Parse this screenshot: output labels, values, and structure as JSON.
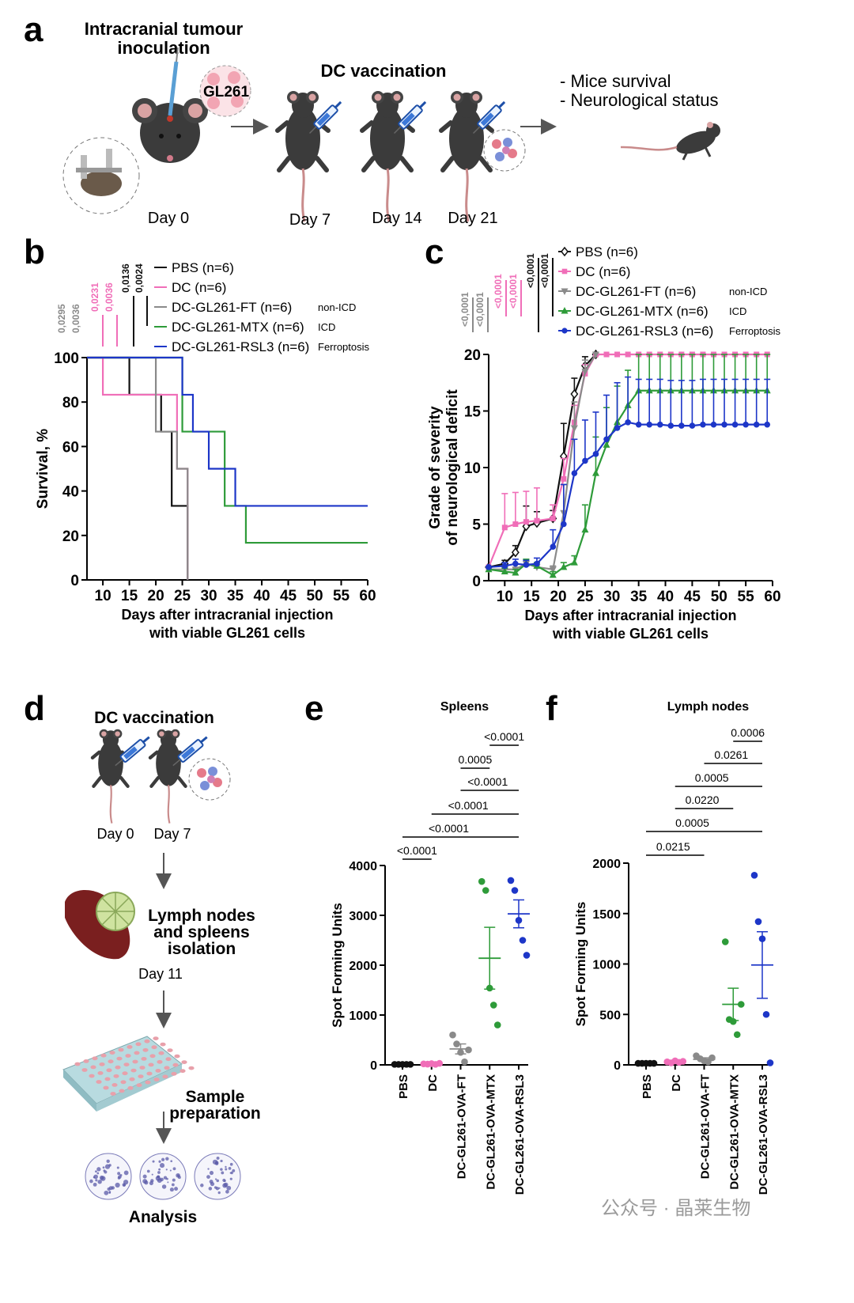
{
  "panels": {
    "a": {
      "letter": "a",
      "inoculation_title_l1": "Intracranial tumour",
      "inoculation_title_l2": "inoculation",
      "cell_line": "GL261",
      "vaccination_title": "DC vaccination",
      "outcome_1": "- Mice survival",
      "outcome_2": "- Neurological status",
      "days": [
        "Day 0",
        "Day 7",
        "Day 14",
        "Day 21"
      ]
    },
    "b": {
      "letter": "b"
    },
    "c": {
      "letter": "c"
    },
    "d": {
      "letter": "d",
      "title": "DC vaccination",
      "day_0": "Day 0",
      "day_7": "Day 7",
      "isolation_l1": "Lymph nodes",
      "isolation_l2": "and spleens",
      "isolation_l3": "isolation",
      "day_11": "Day 11",
      "sample_l1": "Sample",
      "sample_l2": "preparation",
      "analysis": "Analysis"
    },
    "e": {
      "letter": "e"
    },
    "f": {
      "letter": "f"
    }
  },
  "watermark": "公众号 · 晶莱生物",
  "colors": {
    "PBS": "#111111",
    "DC": "#f06eb8",
    "FT": "#8a8a8a",
    "MTX": "#2e9b39",
    "RSL3": "#1d36c8",
    "mouse": "#3b3b3b",
    "tail": "#c98b8b",
    "spleen": "#7a1f1f",
    "lymph": "#cfe3a0",
    "plate": "#b8dbe0",
    "well": "#e8a0aa"
  },
  "chart_data": [
    {
      "panel": "b",
      "type": "line",
      "step": true,
      "xlabel_l1": "Days after intracranial injection",
      "xlabel_l2": "with viable GL261 cells",
      "ylabel": "Survival, %",
      "xlim": [
        7,
        60
      ],
      "ylim": [
        0,
        100
      ],
      "xticks": [
        10,
        15,
        20,
        25,
        30,
        35,
        40,
        45,
        50,
        55,
        60
      ],
      "yticks": [
        0,
        20,
        40,
        60,
        80,
        100
      ],
      "legend_placement": "top-right",
      "series": [
        {
          "name": "PBS (n=6)",
          "key": "PBS",
          "x": [
            7,
            15,
            21,
            23,
            26
          ],
          "y": [
            100,
            83.3,
            66.7,
            33.3,
            0
          ]
        },
        {
          "name": "DC (n=6)",
          "key": "DC",
          "x": [
            7,
            10,
            18,
            24,
            25,
            26
          ],
          "y": [
            100,
            83.3,
            83.3,
            50,
            50,
            0
          ]
        },
        {
          "name": "DC-GL261-FT (n=6)",
          "key": "FT",
          "x": [
            7,
            20,
            24,
            26
          ],
          "y": [
            100,
            66.7,
            50,
            0
          ]
        },
        {
          "name": "DC-GL261-MTX (n=6)",
          "key": "MTX",
          "x": [
            7,
            25,
            29,
            33,
            37,
            60
          ],
          "y": [
            100,
            66.7,
            66.7,
            33.3,
            16.7,
            16.7
          ]
        },
        {
          "name": "DC-GL261-RSL3 (n=6)",
          "key": "RSL3",
          "x": [
            7,
            25,
            27,
            30,
            35,
            60
          ],
          "y": [
            100,
            83.3,
            66.7,
            50,
            33.3,
            33.3
          ]
        }
      ],
      "legend_tags": [
        "non-ICD",
        "ICD",
        "Ferroptosis"
      ],
      "pvalues": [
        {
          "label": "0,0295",
          "color": "FT"
        },
        {
          "label": "0,0036",
          "color": "FT"
        },
        {
          "label": "0,0231",
          "color": "DC"
        },
        {
          "label": "0,0036",
          "color": "DC"
        },
        {
          "label": "0,0136",
          "color": "PBS"
        },
        {
          "label": "0,0024",
          "color": "PBS"
        }
      ]
    },
    {
      "panel": "c",
      "type": "line",
      "xlabel_l1": "Days after intracranial injection",
      "xlabel_l2": "with viable GL261 cells",
      "ylabel_l1": "Grade of severity",
      "ylabel_l2": "of neurological deficit",
      "xlim": [
        7,
        60
      ],
      "ylim": [
        0,
        20
      ],
      "xticks": [
        10,
        15,
        20,
        25,
        30,
        35,
        40,
        45,
        50,
        55,
        60
      ],
      "yticks": [
        0,
        5,
        10,
        15,
        20
      ],
      "legend_placement": "top-right",
      "series": [
        {
          "name": "PBS (n=6)",
          "key": "PBS",
          "marker": "open-diamond",
          "x": [
            7,
            10,
            12,
            14,
            16,
            19,
            21,
            23,
            25,
            27
          ],
          "y": [
            1.2,
            1.5,
            2.5,
            4.8,
            5.1,
            5.5,
            11,
            16.5,
            19,
            20
          ],
          "err": [
            0,
            0.3,
            0.6,
            1.8,
            1,
            0.7,
            2.9,
            1.4,
            0.8,
            0
          ]
        },
        {
          "name": "DC (n=6)",
          "key": "DC",
          "marker": "square",
          "x": [
            7,
            10,
            12,
            14,
            16,
            19,
            21,
            23,
            25,
            27,
            29,
            31,
            33,
            35,
            37,
            39,
            41,
            43,
            45,
            47,
            49,
            51,
            53,
            55,
            57,
            59
          ],
          "y": [
            1.2,
            4.7,
            5,
            5.2,
            5.3,
            5.5,
            9,
            14,
            18.3,
            20,
            20,
            20,
            20,
            20,
            20,
            20,
            20,
            20,
            20,
            20,
            20,
            20,
            20,
            20,
            20,
            20
          ],
          "err": [
            0,
            3,
            2.8,
            2.7,
            2.9,
            1.2,
            1.8,
            1.5,
            0.8,
            0,
            0,
            0,
            0,
            0,
            0,
            0,
            0,
            0,
            0,
            0,
            0,
            0,
            0,
            0,
            0,
            0
          ]
        },
        {
          "name": "DC-GL261-FT (n=6)",
          "key": "FT",
          "marker": "triangle-down",
          "x": [
            7,
            10,
            12,
            14,
            16,
            19,
            21,
            23,
            25,
            27
          ],
          "y": [
            1,
            1,
            1,
            1.5,
            1.2,
            1,
            6,
            13.5,
            18.5,
            20
          ],
          "err": [
            0,
            0.3,
            0.5,
            0.4,
            0.4,
            0.3,
            2.5,
            2.3,
            1,
            0
          ]
        },
        {
          "name": "DC-GL261-MTX (n=6)",
          "key": "MTX",
          "marker": "triangle-up",
          "x": [
            7,
            10,
            12,
            14,
            16,
            19,
            21,
            23,
            25,
            27,
            29,
            31,
            33,
            35,
            37,
            39,
            41,
            43,
            45,
            47,
            49,
            51,
            53,
            55,
            57,
            59
          ],
          "y": [
            1,
            0.8,
            0.7,
            1.5,
            1.3,
            0.5,
            1.2,
            1.6,
            4.5,
            9.5,
            12,
            14,
            15.5,
            16.8,
            16.8,
            16.8,
            16.8,
            16.8,
            16.8,
            16.8,
            16.8,
            16.8,
            16.8,
            16.8,
            16.8,
            16.8
          ],
          "err": [
            0,
            0.3,
            0.3,
            0.4,
            0.3,
            0.3,
            0.4,
            0.6,
            2.2,
            3.2,
            3.3,
            3.2,
            3.1,
            3.2,
            3.2,
            3.2,
            3.2,
            3.2,
            3.2,
            3.2,
            3.2,
            3.2,
            3.2,
            3.2,
            3.2,
            3.2
          ]
        },
        {
          "name": "DC-GL261-RSL3 (n=6)",
          "key": "RSL3",
          "marker": "circle",
          "x": [
            7,
            10,
            12,
            14,
            16,
            19,
            21,
            23,
            25,
            27,
            29,
            31,
            33,
            35,
            37,
            39,
            41,
            43,
            45,
            47,
            49,
            51,
            53,
            55,
            57,
            59
          ],
          "y": [
            1.2,
            1.3,
            1.5,
            1.4,
            1.5,
            3,
            5,
            9.5,
            10.6,
            11.2,
            12.5,
            13.5,
            14,
            13.8,
            13.8,
            13.8,
            13.7,
            13.7,
            13.7,
            13.8,
            13.8,
            13.8,
            13.8,
            13.8,
            13.8,
            13.8
          ],
          "err": [
            0,
            0.3,
            0.4,
            0.4,
            0.5,
            1.5,
            3.5,
            3,
            3.6,
            3.7,
            3.9,
            4,
            4,
            4,
            4,
            4,
            4,
            4,
            4,
            4,
            4,
            4,
            4,
            4,
            4,
            4
          ]
        }
      ],
      "legend_tags": [
        "non-ICD",
        "ICD",
        "Ferroptosis"
      ],
      "pvalues": [
        {
          "label": "<0,0001",
          "color": "FT"
        },
        {
          "label": "<0,0001",
          "color": "FT"
        },
        {
          "label": "<0,0001",
          "color": "DC"
        },
        {
          "label": "<0,0001",
          "color": "DC"
        },
        {
          "label": "<0,0001",
          "color": "PBS"
        },
        {
          "label": "<0,0001",
          "color": "PBS"
        }
      ]
    },
    {
      "panel": "e",
      "type": "scatter",
      "title": "Spleens",
      "ylabel": "Spot Forming Units",
      "ylim": [
        0,
        4000
      ],
      "yticks": [
        0,
        1000,
        2000,
        3000,
        4000
      ],
      "categories": [
        "PBS",
        "DC",
        "DC-GL261-OVA-FT",
        "DC-GL261-OVA-MTX",
        "DC-GL261-OVA-RSL3"
      ],
      "points": [
        [
          10,
          10,
          10,
          10,
          10
        ],
        [
          20,
          15,
          25,
          10,
          30
        ],
        [
          600,
          420,
          250,
          60,
          300
        ],
        [
          3680,
          3500,
          1540,
          1200,
          800
        ],
        [
          3700,
          3500,
          2900,
          2500,
          2200
        ]
      ],
      "mean": [
        10,
        20,
        320,
        2140,
        3030
      ],
      "sem": [
        2,
        4,
        100,
        620,
        280
      ],
      "brackets": [
        {
          "from": 0,
          "to": 1,
          "label": "<0.0001"
        },
        {
          "from": 0,
          "to": 4,
          "label": "<0.0001"
        },
        {
          "from": 1,
          "to": 4,
          "label": "<0.0001"
        },
        {
          "from": 2,
          "to": 4,
          "label": "<0.0001"
        },
        {
          "from": 2,
          "to": 3,
          "label": "0.0005"
        },
        {
          "from": 3,
          "to": 4,
          "label": "<0.0001"
        }
      ]
    },
    {
      "panel": "f",
      "type": "scatter",
      "title": "Lymph nodes",
      "ylabel": "Spot Forming Units",
      "ylim": [
        0,
        2000
      ],
      "yticks": [
        0,
        500,
        1000,
        1500,
        2000
      ],
      "categories": [
        "PBS",
        "DC",
        "DC-GL261-OVA-FT",
        "DC-GL261-OVA-MTX",
        "DC-GL261-OVA-RSL3"
      ],
      "points": [
        [
          15,
          15,
          15,
          15,
          15
        ],
        [
          30,
          20,
          40,
          25,
          35
        ],
        [
          90,
          60,
          40,
          30,
          70
        ],
        [
          1220,
          450,
          430,
          300,
          600
        ],
        [
          1880,
          1420,
          1250,
          500,
          20
        ]
      ],
      "mean": [
        15,
        30,
        55,
        600,
        990
      ],
      "sem": [
        2,
        5,
        15,
        160,
        330
      ],
      "brackets": [
        {
          "from": 0,
          "to": 2,
          "label": "0.0215"
        },
        {
          "from": 0,
          "to": 4,
          "label": "0.0005"
        },
        {
          "from": 1,
          "to": 3,
          "label": "0.0220"
        },
        {
          "from": 1,
          "to": 4,
          "label": "0.0005"
        },
        {
          "from": 2,
          "to": 4,
          "label": "0.0261"
        },
        {
          "from": 3,
          "to": 4,
          "label": "0.0006"
        }
      ]
    }
  ]
}
